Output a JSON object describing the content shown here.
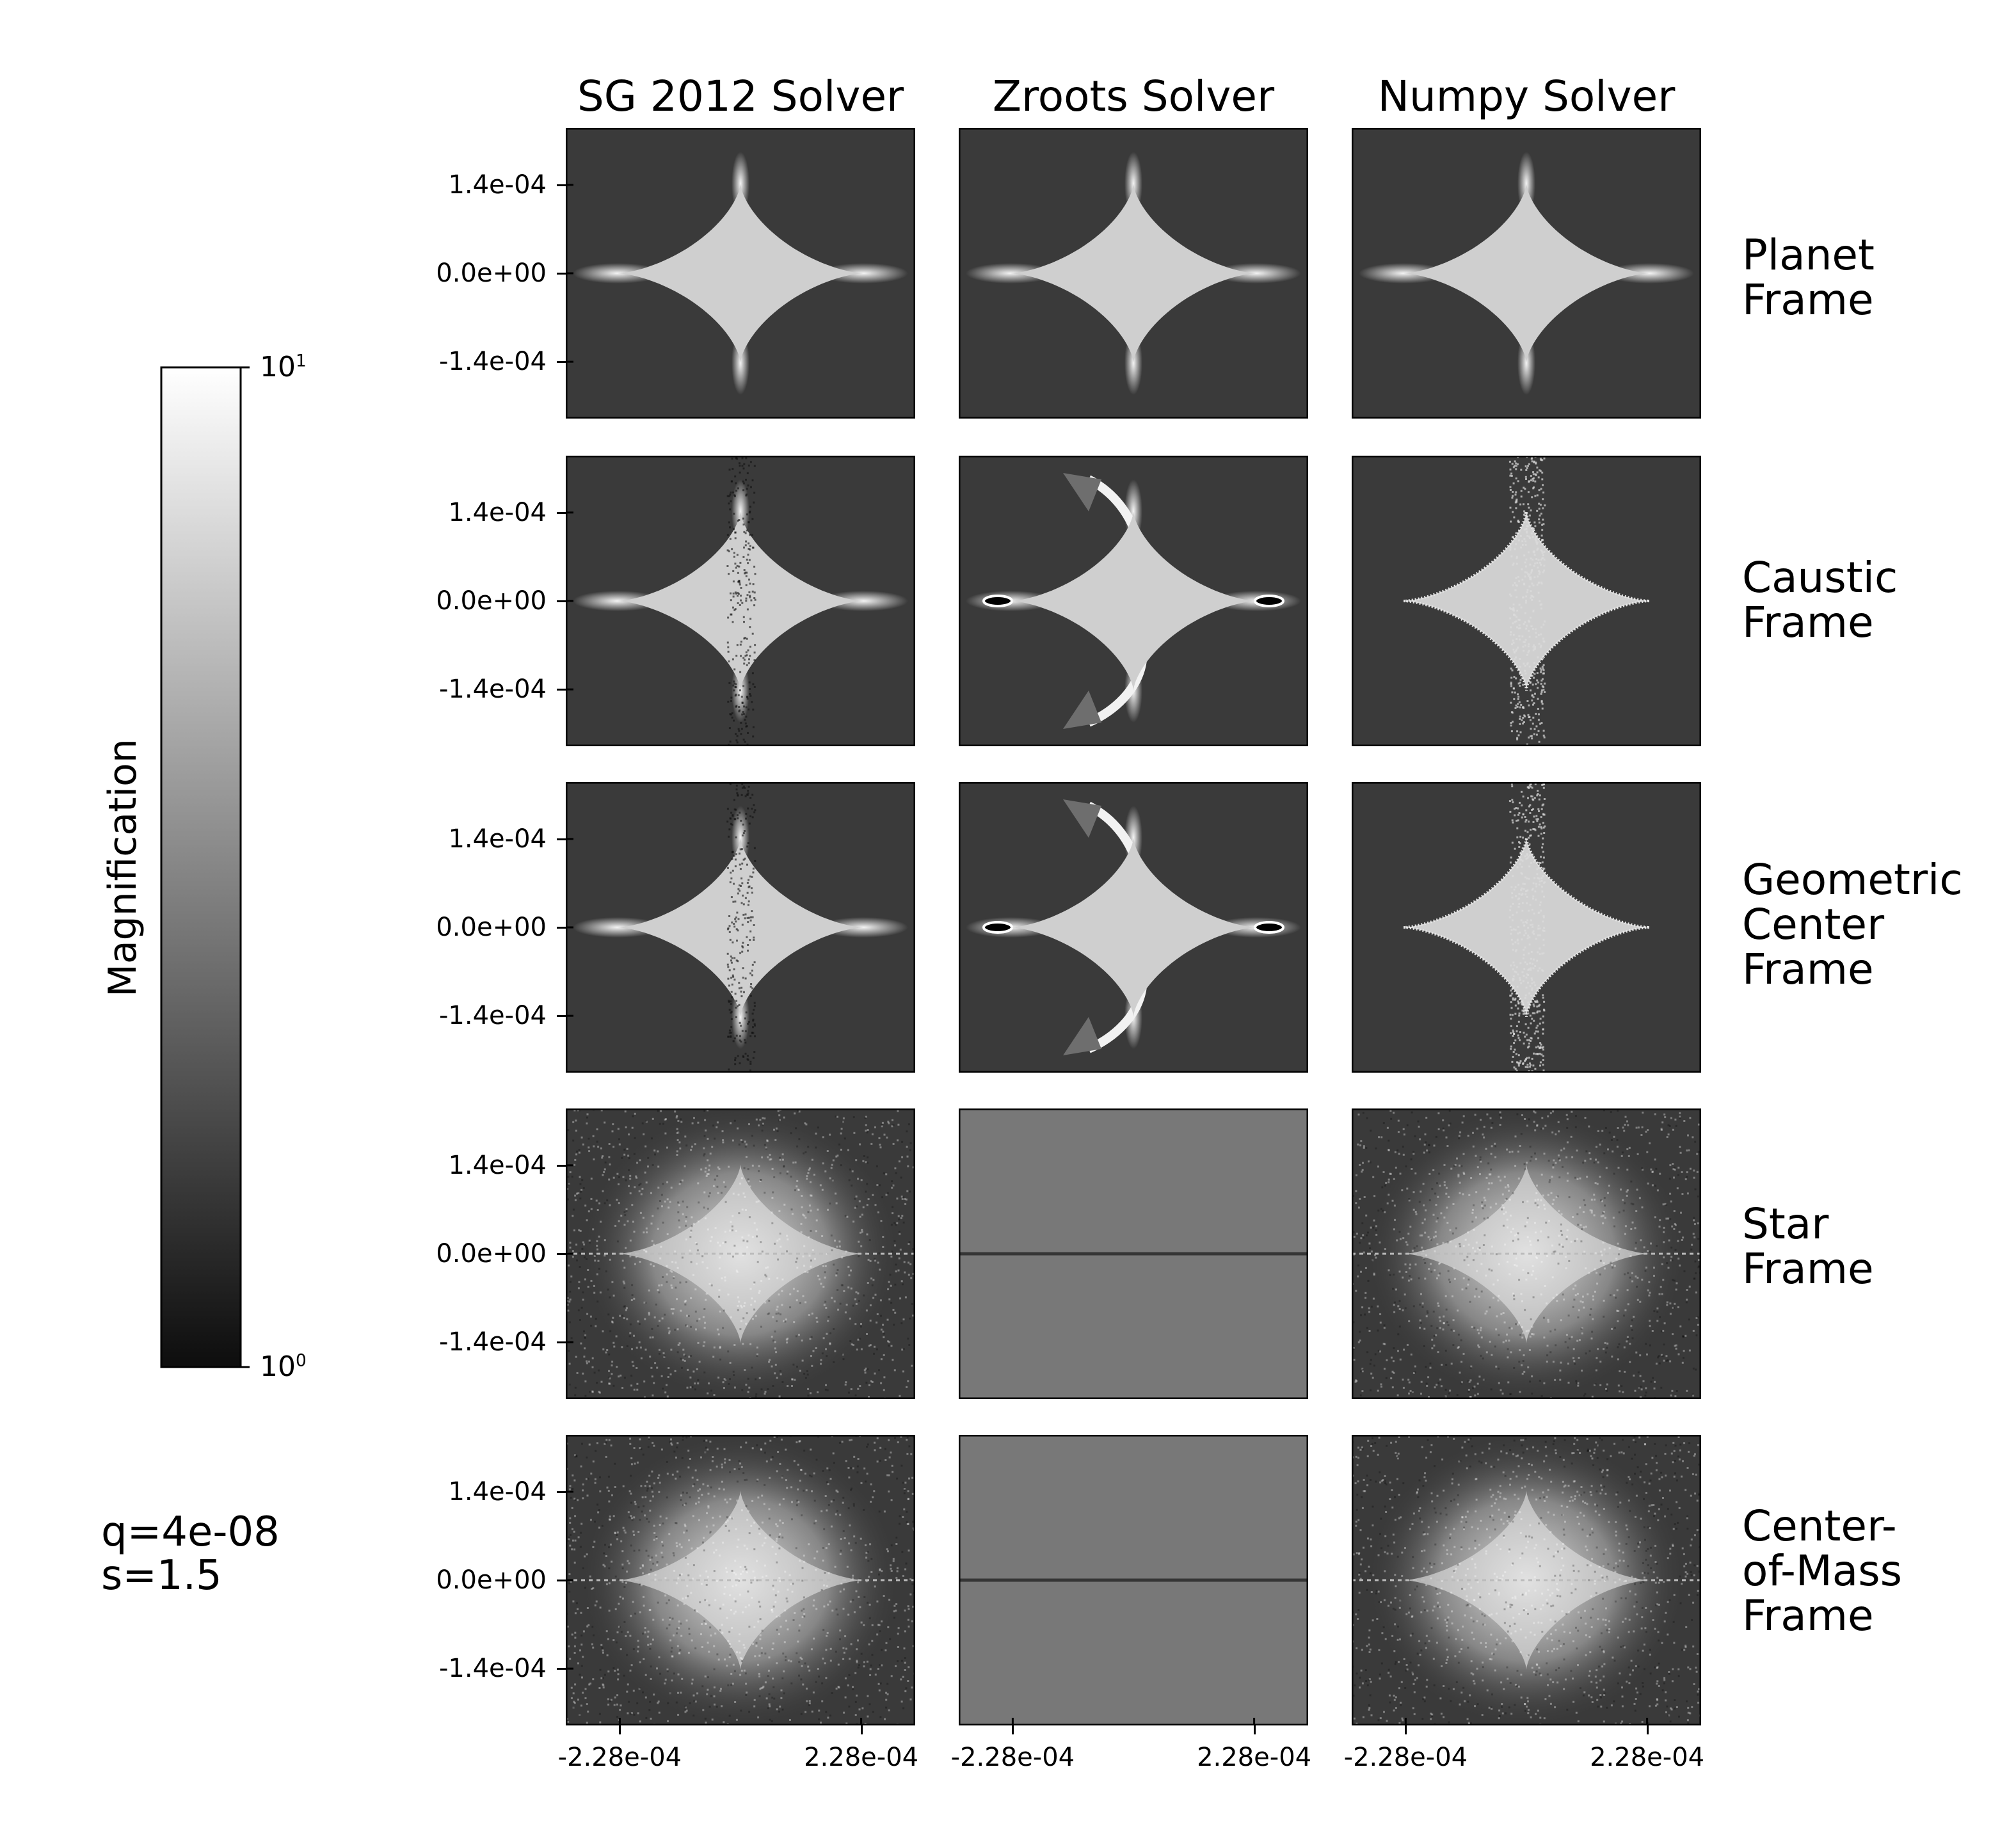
{
  "chart_data": {
    "type": "heatmap",
    "title": "",
    "columns": [
      "SG 2012 Solver",
      "Zroots Solver",
      "Numpy Solver"
    ],
    "rows": [
      {
        "label": "Planet\nFrame",
        "key": "planet"
      },
      {
        "label": "Caustic\nFrame",
        "key": "caustic"
      },
      {
        "label": "Geometric\nCenter\nFrame",
        "key": "geometric"
      },
      {
        "label": "Star\nFrame",
        "key": "star"
      },
      {
        "label": "Center-\nof-Mass\nFrame",
        "key": "com"
      }
    ],
    "y_ticks": [
      {
        "value": 0.00014,
        "label": "1.4e-04"
      },
      {
        "value": 0.0,
        "label": "0.0e+00"
      },
      {
        "value": -0.00014,
        "label": "-1.4e-04"
      }
    ],
    "x_ticks": [
      {
        "value": -0.000228,
        "label": "-2.28e-04"
      },
      {
        "value": 0.000228,
        "label": "2.28e-04"
      }
    ],
    "xlim": [
      -0.00033,
      0.00033
    ],
    "ylim": [
      -0.00023,
      0.00023
    ],
    "colorbar": {
      "label": "Magnification",
      "scale": "log",
      "min_label_base": "10",
      "min_label_exp": "0",
      "max_label_base": "10",
      "max_label_exp": "1",
      "colors": [
        "#0d0d0d",
        "#ffffff"
      ]
    },
    "annotation": [
      "q=4e-08",
      "s=1.5"
    ],
    "panel_styles": [
      [
        "clean",
        "clean",
        "clean"
      ],
      [
        "noisy",
        "artifact",
        "speckle"
      ],
      [
        "noisy",
        "artifact",
        "speckle"
      ],
      [
        "diffuse",
        "flat",
        "diffuse"
      ],
      [
        "diffuse",
        "flat",
        "diffuse"
      ]
    ],
    "colors": {
      "background": "#3a3a3a",
      "caustic_fill": "#cfcfcf",
      "flat_panel": "#787878",
      "flat_line": "#353535"
    }
  }
}
